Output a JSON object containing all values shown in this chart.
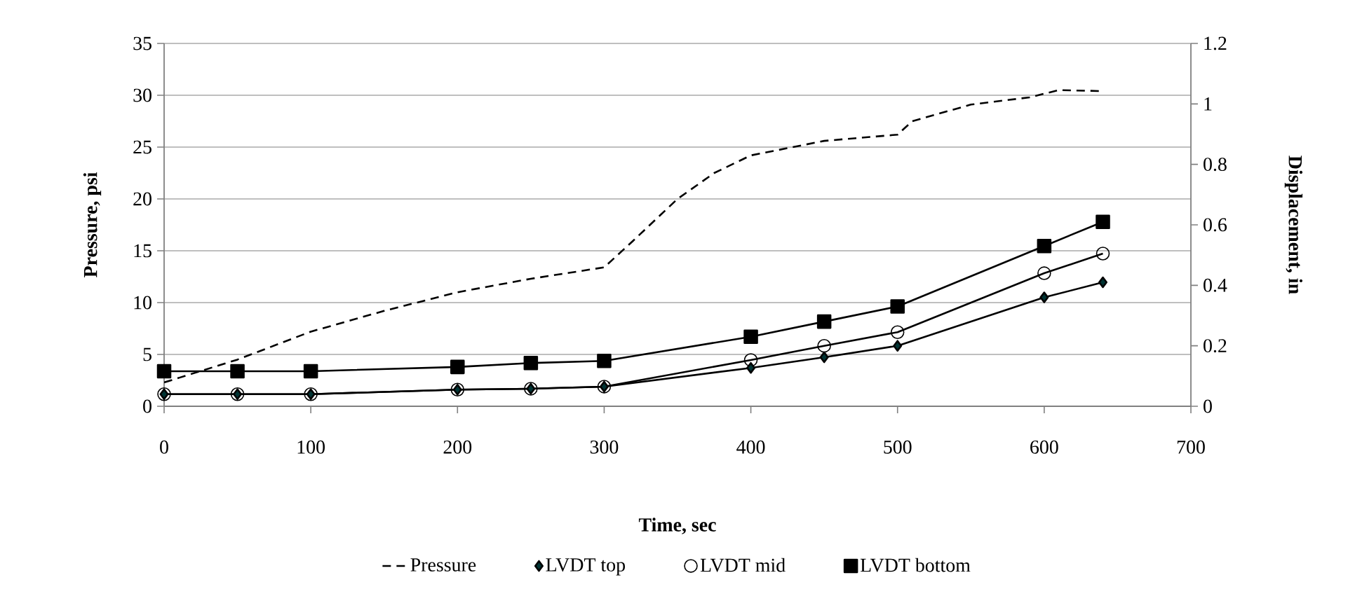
{
  "chart_data": {
    "type": "line",
    "xlabel": "Time, sec",
    "ylabel": "Pressure, psi",
    "y2label": "Displacement, in",
    "xlim": [
      0,
      700
    ],
    "xticks": [
      0,
      100,
      200,
      300,
      400,
      500,
      600,
      700
    ],
    "ylim": [
      0,
      35
    ],
    "yticks": [
      0,
      5,
      10,
      15,
      20,
      25,
      30,
      35
    ],
    "y2lim": [
      0,
      1.2
    ],
    "y2ticks": [
      0,
      {
        "value": 0.2,
        "label": "0.2"
      },
      {
        "value": 0.4,
        "label": "0.4"
      },
      {
        "value": 0.6,
        "label": "0.6"
      },
      {
        "value": 0.8,
        "label": "0.8"
      },
      1,
      {
        "value": 1.2,
        "label": "1.2"
      }
    ],
    "grid": "y",
    "legend": "bottom",
    "series": [
      {
        "name": "Pressure",
        "color": "#000000",
        "axis": "y",
        "marker": "none",
        "line_style": "dashed",
        "x": [
          0,
          50,
          100,
          150,
          200,
          250,
          300,
          320,
          350,
          375,
          400,
          450,
          500,
          510,
          550,
          590,
          610,
          640
        ],
        "values": [
          2.3,
          4.5,
          7.2,
          9.2,
          11,
          12.3,
          13.4,
          16,
          20,
          22.5,
          24.2,
          25.6,
          26.2,
          27.5,
          29.1,
          29.8,
          30.5,
          30.4
        ]
      },
      {
        "name": "LVDT top",
        "color": "#000000",
        "axis": "y2",
        "marker": "diamond",
        "line_style": "solid",
        "x": [
          0,
          50,
          100,
          200,
          250,
          300,
          400,
          450,
          500,
          600,
          640
        ],
        "values": [
          0.04,
          0.04,
          0.04,
          0.055,
          0.058,
          0.065,
          0.127,
          0.162,
          0.2,
          0.36,
          0.41
        ]
      },
      {
        "name": "LVDT mid",
        "color": "#000000",
        "axis": "y2",
        "marker": "circle",
        "line_style": "solid",
        "x": [
          0,
          50,
          100,
          200,
          250,
          300,
          400,
          450,
          500,
          600,
          640
        ],
        "values": [
          0.04,
          0.04,
          0.04,
          0.055,
          0.058,
          0.065,
          0.153,
          0.2,
          0.245,
          0.44,
          0.505
        ]
      },
      {
        "name": "LVDT bottom",
        "color": "#000000",
        "axis": "y2",
        "marker": "square",
        "line_style": "solid",
        "x": [
          0,
          50,
          100,
          200,
          250,
          300,
          400,
          450,
          500,
          600,
          640
        ],
        "values": [
          0.116,
          0.116,
          0.116,
          0.13,
          0.143,
          0.15,
          0.23,
          0.28,
          0.33,
          0.53,
          0.61
        ]
      }
    ]
  }
}
